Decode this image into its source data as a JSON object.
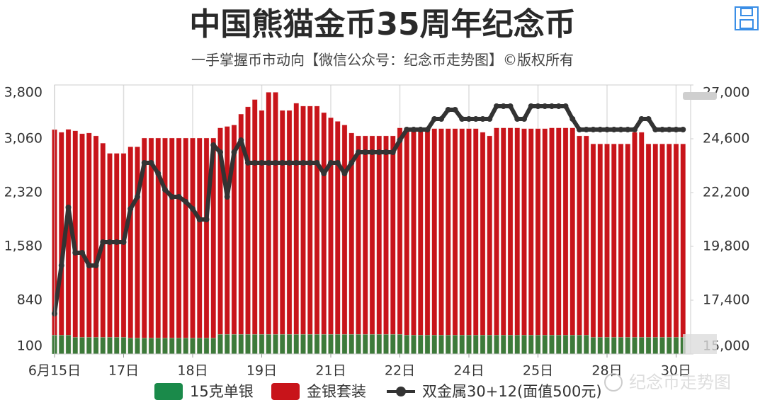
{
  "chart_data": {
    "type": "bar-line",
    "title": "中国熊猫金币35周年纪念币",
    "subtitle": "一手掌握币市动向【微信公众号：纪念币走势图】©版权所有",
    "watermark": "纪念币走势图",
    "categories": [
      "6月15日",
      null,
      null,
      null,
      null,
      null,
      null,
      null,
      null,
      null,
      "17日",
      null,
      null,
      null,
      null,
      null,
      null,
      null,
      null,
      null,
      "18日",
      null,
      null,
      null,
      null,
      null,
      null,
      null,
      null,
      null,
      "19日",
      null,
      null,
      null,
      null,
      null,
      null,
      null,
      null,
      null,
      "21日",
      null,
      null,
      null,
      null,
      null,
      null,
      null,
      null,
      null,
      "22日",
      null,
      null,
      null,
      null,
      null,
      null,
      null,
      null,
      null,
      "24日",
      null,
      null,
      null,
      null,
      null,
      null,
      null,
      null,
      null,
      "25日",
      null,
      null,
      null,
      null,
      null,
      null,
      null,
      null,
      null,
      "28日",
      null,
      null,
      null,
      null,
      null,
      null,
      null,
      null,
      null,
      "30日",
      null
    ],
    "series": [
      {
        "name": "15克单银",
        "color": "#1a8a4a",
        "bar_color": "#3d7a3a",
        "axis": "y",
        "values": [
          360,
          360,
          360,
          330,
          330,
          330,
          330,
          330,
          330,
          330,
          330,
          320,
          320,
          320,
          320,
          320,
          320,
          320,
          320,
          320,
          320,
          320,
          320,
          320,
          370,
          370,
          370,
          370,
          370,
          370,
          370,
          370,
          370,
          370,
          370,
          370,
          370,
          370,
          370,
          370,
          370,
          370,
          370,
          370,
          370,
          370,
          370,
          370,
          370,
          370,
          370,
          360,
          360,
          360,
          360,
          360,
          360,
          360,
          360,
          360,
          360,
          360,
          360,
          360,
          360,
          360,
          360,
          360,
          360,
          360,
          360,
          360,
          360,
          360,
          360,
          360,
          360,
          360,
          330,
          330,
          330,
          330,
          330,
          330,
          330,
          330,
          330,
          330,
          330,
          330,
          330,
          330
        ]
      },
      {
        "name": "金银套装",
        "color": "#c8141a",
        "axis": "y",
        "values": [
          3187,
          3150,
          3190,
          3170,
          3130,
          3140,
          3100,
          3000,
          2860,
          2860,
          2860,
          2950,
          2950,
          3070,
          3070,
          3070,
          3070,
          3070,
          3070,
          3070,
          3070,
          3070,
          3070,
          3070,
          3210,
          3230,
          3250,
          3400,
          3500,
          3600,
          3450,
          3700,
          3700,
          3450,
          3450,
          3550,
          3510,
          3510,
          3510,
          3420,
          3350,
          3300,
          3250,
          3140,
          3100,
          3100,
          3100,
          3100,
          3100,
          3100,
          3210,
          3210,
          3210,
          3210,
          3200,
          3200,
          3200,
          3200,
          3200,
          3200,
          3200,
          3200,
          3150,
          3100,
          3210,
          3210,
          3210,
          3210,
          3200,
          3200,
          3200,
          3200,
          3210,
          3210,
          3210,
          3210,
          3100,
          3100,
          2990,
          2990,
          2990,
          2990,
          2990,
          2990,
          3150,
          3150,
          2990,
          2990,
          2990,
          2990,
          2990,
          2990
        ]
      },
      {
        "name": "双金属30+12(面值500元)",
        "color": "#333333",
        "axis": "y2",
        "type": "line",
        "values": [
          16800,
          18948,
          21537,
          19516,
          19516,
          18948,
          18948,
          19990,
          19990,
          19990,
          19990,
          21474,
          22011,
          23527,
          23527,
          23053,
          22327,
          22011,
          22011,
          21790,
          21474,
          21000,
          21000,
          24316,
          24000,
          22011,
          24000,
          24537,
          23527,
          23527,
          23527,
          23527,
          23527,
          23527,
          23527,
          23527,
          23527,
          23527,
          23527,
          23053,
          23527,
          23527,
          23053,
          23527,
          24000,
          24000,
          24000,
          24000,
          24000,
          24000,
          24537,
          25011,
          25011,
          25011,
          25011,
          25484,
          25484,
          25895,
          25895,
          25484,
          25484,
          25484,
          25484,
          25484,
          26053,
          26053,
          26053,
          25484,
          25484,
          26053,
          26053,
          26053,
          26053,
          26053,
          26053,
          25484,
          25011,
          25011,
          25011,
          25011,
          25011,
          25011,
          25011,
          25011,
          25011,
          25484,
          25484,
          25011,
          25011,
          25011,
          25011,
          25011
        ]
      }
    ],
    "ylim": [
      100,
      3800
    ],
    "yticks": [
      100,
      840,
      {
        "value": 1580,
        "label": "1,580"
      },
      {
        "value": 2320,
        "label": "2,320"
      },
      {
        "value": 3060,
        "label": "3,060"
      },
      {
        "value": 3800,
        "label": "3,800"
      }
    ],
    "y2lim": [
      15000,
      27000
    ],
    "y2ticks": [
      {
        "value": 15000,
        "label": "15,000"
      },
      {
        "value": 17400,
        "label": "17,400"
      },
      {
        "value": 19800,
        "label": "19,800"
      },
      {
        "value": 22200,
        "label": "22,200"
      },
      {
        "value": 24600,
        "label": "24,600"
      },
      {
        "value": 27000,
        "label": "27,000"
      }
    ],
    "grid": true,
    "legend": "bottom"
  }
}
